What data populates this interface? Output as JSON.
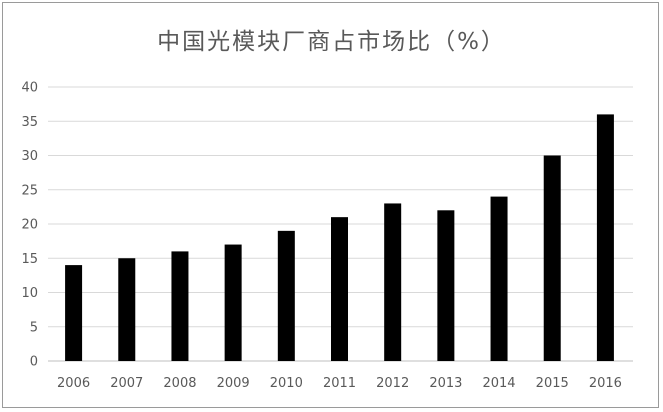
{
  "chart_data": {
    "type": "bar",
    "title": "中国光模块厂商占市场比（%）",
    "categories": [
      "2006",
      "2007",
      "2008",
      "2009",
      "2010",
      "2011",
      "2012",
      "2013",
      "2014",
      "2015",
      "2016"
    ],
    "values": [
      14,
      15,
      16,
      17,
      19,
      21,
      23,
      22,
      24,
      30,
      36
    ],
    "ylim": [
      0,
      40
    ],
    "yticks": [
      0,
      5,
      10,
      15,
      20,
      25,
      30,
      35,
      40
    ],
    "grid": true,
    "legend": "none",
    "colors": {
      "bar": "#000000",
      "grid": "#d9d9d9",
      "axis": "#bfbfbf",
      "text": "#595959"
    }
  }
}
